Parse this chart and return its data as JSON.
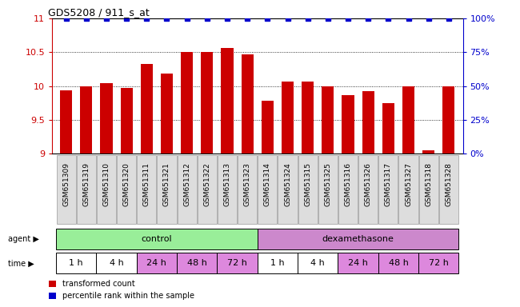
{
  "title": "GDS5208 / 911_s_at",
  "samples": [
    "GSM651309",
    "GSM651319",
    "GSM651310",
    "GSM651320",
    "GSM651311",
    "GSM651321",
    "GSM651312",
    "GSM651322",
    "GSM651313",
    "GSM651323",
    "GSM651314",
    "GSM651324",
    "GSM651315",
    "GSM651325",
    "GSM651316",
    "GSM651326",
    "GSM651317",
    "GSM651327",
    "GSM651318",
    "GSM651328"
  ],
  "bar_values": [
    9.93,
    10.0,
    10.04,
    9.97,
    10.32,
    10.18,
    10.5,
    10.5,
    10.56,
    10.47,
    9.78,
    10.07,
    10.06,
    9.99,
    9.87,
    9.92,
    9.74,
    10.0,
    9.05,
    10.0
  ],
  "percentile_values": [
    100,
    100,
    100,
    100,
    100,
    100,
    100,
    100,
    100,
    100,
    100,
    100,
    100,
    100,
    100,
    100,
    100,
    100,
    100,
    100
  ],
  "bar_color": "#cc0000",
  "percentile_color": "#0000cc",
  "ylim_left": [
    9,
    11
  ],
  "ylim_right": [
    0,
    100
  ],
  "yticks_left": [
    9,
    9.5,
    10,
    10.5,
    11
  ],
  "yticks_right": [
    0,
    25,
    50,
    75,
    100
  ],
  "ytick_labels_right": [
    "0%",
    "25%",
    "50%",
    "75%",
    "100%"
  ],
  "agent_groups": [
    {
      "label": "control",
      "start": 0,
      "end": 9,
      "color": "#99ee99"
    },
    {
      "label": "dexamethasone",
      "start": 10,
      "end": 19,
      "color": "#cc88cc"
    }
  ],
  "time_groups": [
    {
      "label": "1 h",
      "start": 0,
      "end": 1
    },
    {
      "label": "4 h",
      "start": 2,
      "end": 3
    },
    {
      "label": "24 h",
      "start": 4,
      "end": 5
    },
    {
      "label": "48 h",
      "start": 6,
      "end": 7
    },
    {
      "label": "72 h",
      "start": 8,
      "end": 9
    },
    {
      "label": "1 h",
      "start": 10,
      "end": 11
    },
    {
      "label": "4 h",
      "start": 12,
      "end": 13
    },
    {
      "label": "24 h",
      "start": 14,
      "end": 15
    },
    {
      "label": "48 h",
      "start": 16,
      "end": 17
    },
    {
      "label": "72 h",
      "start": 18,
      "end": 19
    }
  ],
  "time_colors": {
    "1 h": "#ffffff",
    "4 h": "#ffffff",
    "24 h": "#dd88dd",
    "48 h": "#dd88dd",
    "72 h": "#dd88dd"
  },
  "legend_bar_label": "transformed count",
  "legend_pct_label": "percentile rank within the sample"
}
